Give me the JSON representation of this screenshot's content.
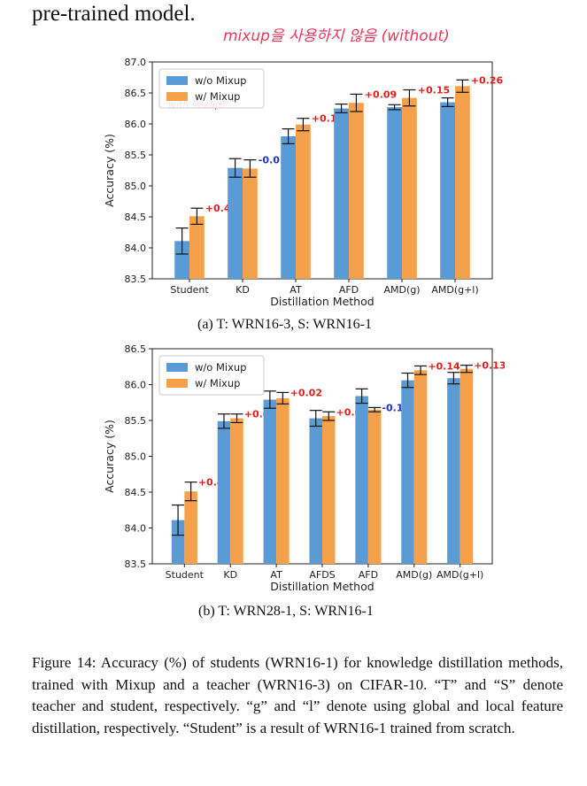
{
  "page": {
    "top_text": "pre-trained model.",
    "handwritten_note": "mixup을 사용하지 않음 (without)",
    "handwritten_sub": "with Mixup.",
    "caption_a": "(a) T: WRN16-3, S: WRN16-1",
    "caption_b": "(b) T: WRN28-1, S: WRN16-1",
    "figure_caption": "Figure 14: Accuracy (%) of students (WRN16-1) for knowledge distillation methods, trained with Mixup and a teacher (WRN16-3) on CIFAR-10. “T” and “S” denote teacher and student, respectively. “g” and “l” denote using global and local feature distillation, respectively. “Student” is a result of WRN16-1 trained from scratch."
  },
  "colors": {
    "without": "#5b9bd5",
    "with": "#f5a04a",
    "positive": "#e0201b",
    "negative": "#1f2fd0"
  },
  "chart_data": [
    {
      "type": "bar",
      "xlabel": "Distillation Method",
      "ylabel": "Accuracy (%)",
      "ylim": [
        83.5,
        87.0
      ],
      "yticks": [
        "83.5",
        "84.0",
        "84.5",
        "85.0",
        "85.5",
        "86.0",
        "86.5",
        "87.0"
      ],
      "legend": "top-left",
      "categories": [
        "Student",
        "KD",
        "AT",
        "AFD",
        "AMD(g)",
        "AMD(g+l)"
      ],
      "series": [
        {
          "name": "w/o Mixup",
          "values": [
            84.11,
            85.29,
            85.8,
            86.25,
            86.27,
            86.35
          ],
          "err": [
            0.21,
            0.15,
            0.12,
            0.07,
            0.04,
            0.07
          ]
        },
        {
          "name": "w/ Mixup",
          "values": [
            84.51,
            85.28,
            85.99,
            86.34,
            86.42,
            86.61
          ],
          "err": [
            0.13,
            0.14,
            0.1,
            0.14,
            0.13,
            0.1
          ]
        }
      ],
      "diffs": [
        "+0.40",
        "-0.01",
        "+0.19",
        "+0.09",
        "+0.15",
        "+0.26"
      ]
    },
    {
      "type": "bar",
      "xlabel": "Distillation Method",
      "ylabel": "Accuracy (%)",
      "ylim": [
        83.5,
        86.5
      ],
      "yticks": [
        "83.5",
        "84.0",
        "84.5",
        "85.0",
        "85.5",
        "86.0",
        "86.5"
      ],
      "legend": "top-left",
      "categories": [
        "Student",
        "KD",
        "AT",
        "AFDS",
        "AFD",
        "AMD(g)",
        "AMD(g+l)"
      ],
      "series": [
        {
          "name": "w/o Mixup",
          "values": [
            84.11,
            85.49,
            85.79,
            85.53,
            85.84,
            86.06,
            86.09
          ],
          "err": [
            0.21,
            0.1,
            0.12,
            0.11,
            0.1,
            0.1,
            0.08
          ]
        },
        {
          "name": "w/ Mixup",
          "values": [
            84.51,
            85.53,
            85.81,
            85.56,
            85.65,
            86.2,
            86.22
          ],
          "err": [
            0.13,
            0.06,
            0.08,
            0.06,
            0.03,
            0.06,
            0.05
          ]
        }
      ],
      "diffs": [
        "+0.40",
        "+0.04",
        "+0.02",
        "+0.03",
        "-0.19",
        "+0.14",
        "+0.13"
      ]
    }
  ]
}
